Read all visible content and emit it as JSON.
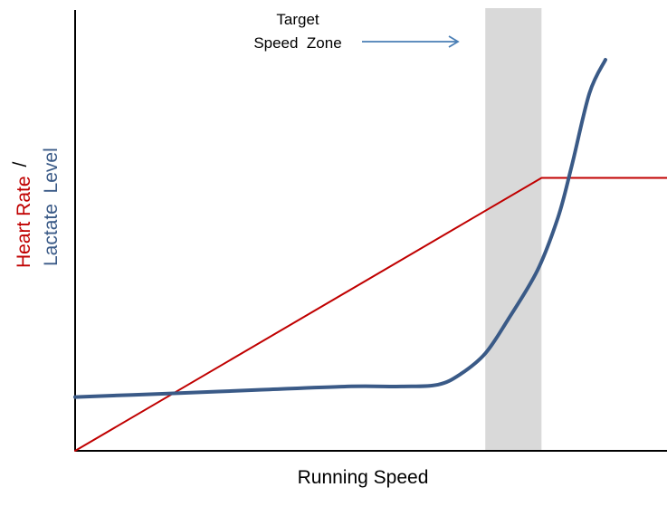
{
  "chart_data": {
    "type": "line",
    "title": "",
    "xlabel": "Running Speed",
    "ylabel": {
      "heart_rate": "Heart Rate",
      "separator": "/",
      "lactate": "Lactate  Level"
    },
    "xlim": [
      0,
      100
    ],
    "ylim": [
      0,
      100
    ],
    "grid": false,
    "legend": "none",
    "annotation": {
      "lines": [
        "Target",
        "Speed  Zone"
      ],
      "arrow_color": "#4a7eb5",
      "zone": [
        69.3,
        78.8
      ],
      "zone_color": "#d9d9d9"
    },
    "series": [
      {
        "name": "Heart Rate",
        "color": "#c00000",
        "x": [
          0,
          78.8,
          100
        ],
        "y": [
          0,
          61.9,
          61.9
        ]
      },
      {
        "name": "Lactate Level",
        "color": "#3a5a87",
        "x": [
          0,
          15.7,
          30.7,
          46.0,
          55.2,
          61.3,
          65.1,
          69.3,
          73.1,
          78.1,
          81.6,
          83.9,
          86.9,
          89.6
        ],
        "y": [
          12.2,
          13.0,
          13.8,
          14.6,
          14.6,
          15.0,
          17.4,
          22.1,
          29.7,
          40.9,
          53.0,
          64.6,
          81.1,
          88.7
        ]
      }
    ]
  }
}
